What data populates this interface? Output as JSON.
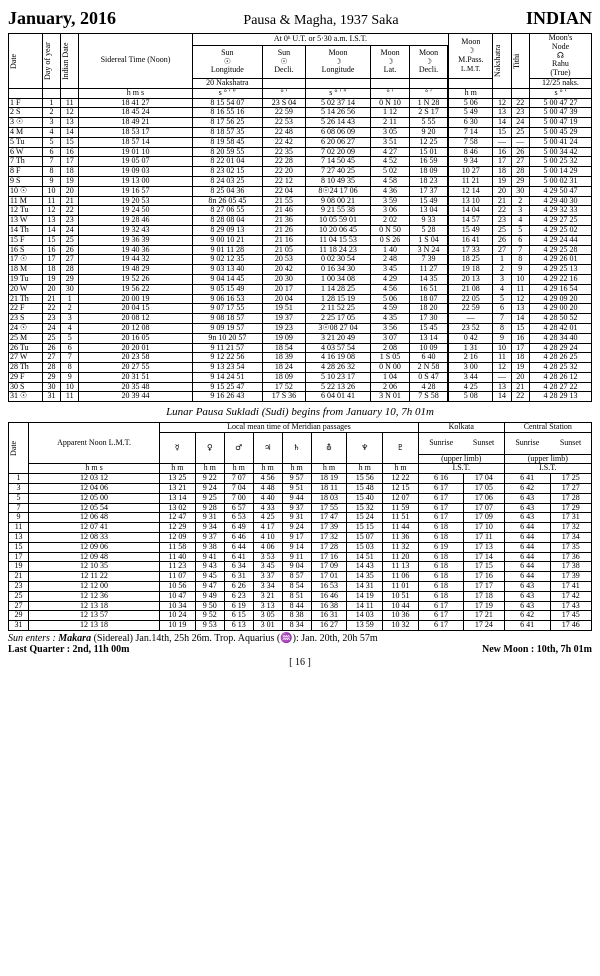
{
  "header": {
    "month": "January, 2016",
    "era": "Pausa & Magha, 1937 Saka",
    "country": "INDIAN"
  },
  "table1": {
    "top_caption": "At 0ʰ U.T. or 5·30 a.m. I.S.T.",
    "cols": {
      "date": "Date",
      "doy": "Day of year",
      "ind": "Indian Date",
      "sid": "Sidereal Time (Noon)",
      "sunlong": "Sun ☉ Longitude",
      "sundecl": "Sun ☉ Decli.",
      "moonlong": "Moon ☽ Longitude",
      "moonlat": "Moon ☽ Lat.",
      "moondecl": "Moon ☽ Decli.",
      "moonpass": "Moon ☽ M.Pass. L.M.T.",
      "nak": "Nakshatra",
      "tithi": "Tithi",
      "rahu": "Moon's Node ☊ Rahu (True)"
    },
    "naknote": "20 Nakshatra",
    "rahunote": "12/25 naks.",
    "units": {
      "hms": "h  m  s",
      "sdms": "s  °  ′  ″",
      "dm": "°  ′",
      "sdm": "s  °  ′",
      "hm": "h  m"
    },
    "rows": [
      [
        "1 F",
        "1",
        "11",
        "18 41 27",
        "8  15 54 07",
        "23 S 04",
        "5  02 37 14",
        "0 N 10",
        "1 N 28",
        "5 06",
        "12",
        "22",
        "5 00 47 27"
      ],
      [
        "2 S",
        "2",
        "12",
        "18 45 24",
        "8  16 55 16",
        "22  59",
        "5  14 26 56",
        "1   12",
        "2 S 17",
        "5 49",
        "13",
        "23",
        "5 00 47 39"
      ],
      [
        "3 ☉",
        "3",
        "13",
        "18 49 21",
        "8  17 56 25",
        "22  53",
        "5  26 14 43",
        "2   11",
        "5   55",
        "6 30",
        "14",
        "24",
        "5 00 47 19"
      ],
      [
        "4 M",
        "4",
        "14",
        "18 53 17",
        "8  18 57 35",
        "22  48",
        "6  08 06 09",
        "3   05",
        "9   20",
        "7 14",
        "15",
        "25",
        "5 00 45 29"
      ],
      [
        "5 Tu",
        "5",
        "15",
        "18 57 14",
        "8  19 58 45",
        "22  42",
        "6  20 06 27",
        "3   51",
        "12  25",
        "7 58",
        "—",
        "—",
        "5 00 41 24"
      ],
      [
        "6 W",
        "6",
        "16",
        "19 01 10",
        "8  20 59 55",
        "22  35",
        "7  02 20 09",
        "4   27",
        "15  01",
        "8 46",
        "16",
        "26",
        "5 00 34 42"
      ],
      [
        "7 Th",
        "7",
        "17",
        "19 05 07",
        "8  22 01 04",
        "22  28",
        "7  14 50 45",
        "4   52",
        "16  59",
        "9 34",
        "17",
        "27",
        "5 00 25 32"
      ],
      [
        "8 F",
        "8",
        "18",
        "19 09 03",
        "8  23 02 15",
        "22  20",
        "7  27 40 25",
        "5   02",
        "18  09",
        "10 27",
        "18",
        "28",
        "5 00 14 29"
      ],
      [
        "9 S",
        "9",
        "19",
        "19 13 00",
        "8  24 03 25",
        "22  12",
        "8  10 49 35",
        "4   58",
        "18  23",
        "11 21",
        "19",
        "29",
        "5 00 02 31"
      ],
      [
        "10 ☉",
        "10",
        "20",
        "19 16 57",
        "8  25 04 36",
        "22  04",
        "8☉24 17 06",
        "4   36",
        "17  37",
        "12 14",
        "20",
        "30",
        "4 29 50 47"
      ],
      [
        "11 M",
        "11",
        "21",
        "19 20 53",
        "8n 26 05 45",
        "21  55",
        "9  08 00 21",
        "3   59",
        "15  49",
        "13 10",
        "21",
        "2",
        "4 29 40 30"
      ],
      [
        "12 Tu",
        "12",
        "22",
        "19 24 50",
        "8  27 06 55",
        "21  46",
        "9  21 55 38",
        "3   06",
        "13  04",
        "14 04",
        "22",
        "3",
        "4 29 32 33"
      ],
      [
        "13 W",
        "13",
        "23",
        "19 28 46",
        "8  28 08 04",
        "21  36",
        "10 05 59 01",
        "2   02",
        "9   33",
        "14 57",
        "23",
        "4",
        "4 29 27 25"
      ],
      [
        "14 Th",
        "14",
        "24",
        "19 32 43",
        "8  29 09 13",
        "21  26",
        "10 20 06 45",
        "0 N 50",
        "5   28",
        "15 49",
        "25",
        "5",
        "4 29 25 02"
      ],
      [
        "15 F",
        "15",
        "25",
        "19 36 39",
        "9  00 10 21",
        "21  16",
        "11 04 15 53",
        "0 S 26",
        "1 S 04",
        "16 41",
        "26",
        "6",
        "4 29 24 44"
      ],
      [
        "16 S",
        "16",
        "26",
        "19 40 36",
        "9  01 11 28",
        "21  05",
        "11 18 24 23",
        "1   40",
        "3 N 24",
        "17 33",
        "27",
        "7",
        "4 29 25 28"
      ],
      [
        "17 ☉",
        "17",
        "27",
        "19 44 32",
        "9  02 12 35",
        "20  53",
        "0  02 30 54",
        "2   48",
        "7   39",
        "18 25",
        "1",
        "8",
        "4 29 26 01"
      ],
      [
        "18 M",
        "18",
        "28",
        "19 48 29",
        "9  03 13 40",
        "20  42",
        "0  16 34 30",
        "3   45",
        "11  27",
        "19 18",
        "2",
        "9",
        "4 29 25 13"
      ],
      [
        "19 Tu",
        "19",
        "29",
        "19 52 26",
        "9  04 14 45",
        "20  30",
        "1  00 34 08",
        "4   29",
        "14  35",
        "20 13",
        "3",
        "10",
        "4 29 22 16"
      ],
      [
        "20 W",
        "20",
        "30",
        "19 56 22",
        "9  05 15 49",
        "20  17",
        "1  14 28 25",
        "4   56",
        "16  51",
        "21 08",
        "4",
        "11",
        "4 29 16 54"
      ],
      [
        "21 Th",
        "21",
        "1",
        "20 00 19",
        "9  06 16 53",
        "20  04",
        "1  28 15 19",
        "5   06",
        "18  07",
        "22 05",
        "5",
        "12",
        "4 29 09 20"
      ],
      [
        "22 F",
        "22",
        "2",
        "20 04 15",
        "9  07 17 55",
        "19  51",
        "2  11 52 25",
        "4   59",
        "18  20",
        "22 59",
        "6",
        "13",
        "4 29 00 20"
      ],
      [
        "23 S",
        "23",
        "3",
        "20 08 12",
        "9  08 18 57",
        "19  37",
        "2  25 17 05",
        "4   35",
        "17  30",
        "—",
        "7",
        "14",
        "4 28 50 52"
      ],
      [
        "24 ☉",
        "24",
        "4",
        "20 12 08",
        "9  09 19 57",
        "19  23",
        "3☉08 27 04",
        "3   56",
        "15  45",
        "23 52",
        "8",
        "15",
        "4 28 42 01"
      ],
      [
        "25 M",
        "25",
        "5",
        "20 16 05",
        "9n 10 20 57",
        "19  09",
        "3  21 20 49",
        "3   07",
        "13  14",
        "0 42",
        "9",
        "16",
        "4 28 34 40"
      ],
      [
        "26 Tu",
        "26",
        "6",
        "20 20 01",
        "9  11 21 57",
        "18  54",
        "4  03 57 54",
        "2   08",
        "10  09",
        "1 31",
        "10",
        "17",
        "4 28 29 24"
      ],
      [
        "27 W",
        "27",
        "7",
        "20 23 58",
        "9  12 22 56",
        "18  39",
        "4  16 19 08",
        "1 S 05",
        "6   40",
        "2 16",
        "11",
        "18",
        "4 28 26 25"
      ],
      [
        "28 Th",
        "28",
        "8",
        "20 27 55",
        "9  13 23 54",
        "18  24",
        "4  28 26 32",
        "0 N 00",
        "2 N 58",
        "3 00",
        "12",
        "19",
        "4 28 25 32"
      ],
      [
        "29 F",
        "29",
        "9",
        "20 31 51",
        "9  14 24 51",
        "18  09",
        "5  10 23 17",
        "1   04",
        "0 S 47",
        "3 44",
        "—",
        "20",
        "4 28 26 12"
      ],
      [
        "30 S",
        "30",
        "10",
        "20 35 48",
        "9  15 25 47",
        "17  52",
        "5  22 13 26",
        "2   06",
        "4   28",
        "4 25",
        "13",
        "21",
        "4 28 27 22"
      ],
      [
        "31 ☉",
        "31",
        "11",
        "20 39 44",
        "9  16 26 43",
        "17 S 36",
        "6  04 01 41",
        "3 N 01",
        "7 S 58",
        "5 08",
        "14",
        "22",
        "4 28 29 13"
      ]
    ]
  },
  "midnote": "Lunar Pausa Sukladi (Sudi) begins from January 10, 7h 01m",
  "table2": {
    "caption_local": "Local mean time of Meridian passages",
    "col_date": "Date",
    "col_noon": "Apparent Noon L.M.T.",
    "kolkata": "Kolkata",
    "central": "Central Station",
    "sunrise": "Sunrise",
    "sunset": "Sunset",
    "upper": "(upper limb)",
    "ist": "I.S.T.",
    "planets": [
      "☿",
      "♀",
      "♂",
      "♃",
      "♄",
      "⛢",
      "♆",
      "♇"
    ],
    "unit_hms": "h  m  s",
    "unit_hm": "h  m",
    "rows": [
      [
        "1",
        "12 03 12",
        "13 25",
        "9 22",
        "7 07",
        "4 56",
        "9 57",
        "18 19",
        "15 56",
        "12 22",
        "6 16",
        "17 04",
        "6 41",
        "17 25"
      ],
      [
        "3",
        "12 04 06",
        "13 21",
        "9 24",
        "7 04",
        "4 48",
        "9 51",
        "18 11",
        "15 48",
        "12 15",
        "6 17",
        "17 05",
        "6 42",
        "17 27"
      ],
      [
        "5",
        "12 05 00",
        "13 14",
        "9 25",
        "7 00",
        "4 40",
        "9 44",
        "18 03",
        "15 40",
        "12 07",
        "6 17",
        "17 06",
        "6 43",
        "17 28"
      ],
      [
        "7",
        "12 05 54",
        "13 02",
        "9 28",
        "6 57",
        "4 33",
        "9 37",
        "17 55",
        "15 32",
        "11 59",
        "6 17",
        "17 07",
        "6 43",
        "17 29"
      ],
      [
        "9",
        "12 06 48",
        "12 47",
        "9 31",
        "6 53",
        "4 25",
        "9 31",
        "17 47",
        "15 24",
        "11 51",
        "6 17",
        "17 09",
        "6 43",
        "17 31"
      ],
      [
        "11",
        "12 07 41",
        "12 29",
        "9 34",
        "6 49",
        "4 17",
        "9 24",
        "17 39",
        "15 15",
        "11 44",
        "6 18",
        "17 10",
        "6 44",
        "17 32"
      ],
      [
        "13",
        "12 08 33",
        "12 09",
        "9 37",
        "6 46",
        "4 10",
        "9 17",
        "17 32",
        "15 07",
        "11 36",
        "6 18",
        "17 11",
        "6 44",
        "17 34"
      ],
      [
        "15",
        "12 09 06",
        "11 58",
        "9 38",
        "6 44",
        "4 06",
        "9 14",
        "17 28",
        "15 03",
        "11 32",
        "6 19",
        "17 13",
        "6 44",
        "17 35"
      ],
      [
        "17",
        "12 09 48",
        "11 40",
        "9 41",
        "6 41",
        "3 53",
        "9 11",
        "17 16",
        "14 51",
        "11 20",
        "6 18",
        "17 14",
        "6 44",
        "17 36"
      ],
      [
        "19",
        "12 10 35",
        "11 23",
        "9 43",
        "6 34",
        "3 45",
        "9 04",
        "17 09",
        "14 43",
        "11 13",
        "6 18",
        "17 15",
        "6 44",
        "17 38"
      ],
      [
        "21",
        "12 11 22",
        "11 07",
        "9 45",
        "6 31",
        "3 37",
        "8 57",
        "17 01",
        "14 35",
        "11 06",
        "6 18",
        "17 16",
        "6 44",
        "17 39"
      ],
      [
        "23",
        "12 12 00",
        "10 56",
        "9 47",
        "6 26",
        "3 34",
        "8 54",
        "16 53",
        "14 31",
        "11 01",
        "6 18",
        "17 17",
        "6 43",
        "17 41"
      ],
      [
        "25",
        "12 12 36",
        "10 47",
        "9 49",
        "6 23",
        "3 21",
        "8 51",
        "16 46",
        "14 19",
        "10 51",
        "6 18",
        "17 18",
        "6 43",
        "17 42"
      ],
      [
        "27",
        "12 13 18",
        "10 34",
        "9 50",
        "6 19",
        "3 13",
        "8 44",
        "16 38",
        "14 11",
        "10 44",
        "6 17",
        "17 19",
        "6 43",
        "17 43"
      ],
      [
        "29",
        "12 13 57",
        "10 24",
        "9 52",
        "6 15",
        "3 05",
        "8 38",
        "16 31",
        "14 03",
        "10 36",
        "6 17",
        "17 21",
        "6 42",
        "17 45"
      ],
      [
        "31",
        "12 13 18",
        "10 19",
        "9 53",
        "6 13",
        "3 01",
        "8 34",
        "16 27",
        "13 59",
        "10 32",
        "6 17",
        "17 24",
        "6 41",
        "17 46"
      ]
    ]
  },
  "footer": {
    "l1a": "Sun enters :",
    "l1b": "Makara",
    "l1c": "(Sidereal) Jan.14th, 25h 26m. Trop. Aquarius (♒): Jan. 20th, 20h 57m",
    "l2a": "Last Quarter : 2nd, 11h 00m",
    "l2b": "New Moon : 10th, 7h 01m",
    "page": "[ 16 ]"
  }
}
